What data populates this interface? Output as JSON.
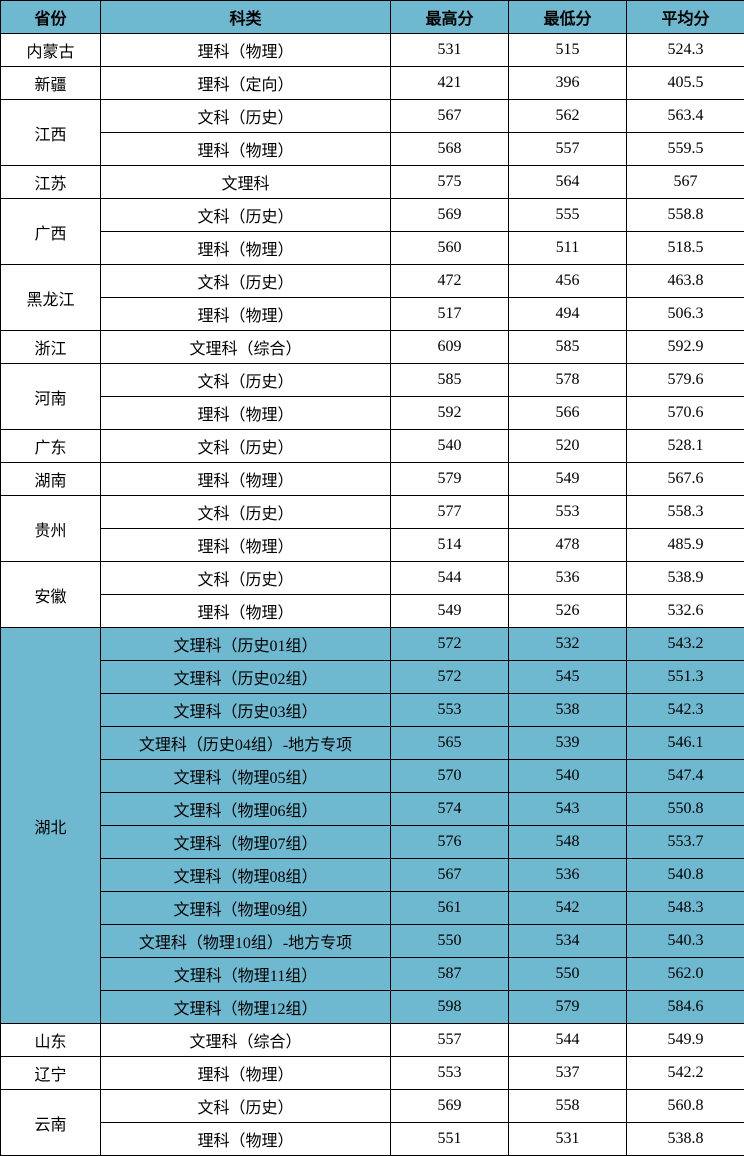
{
  "colors": {
    "header_bg": "#6eb8d0",
    "highlight_bg": "#6eb8d0",
    "normal_bg": "#ffffff",
    "border": "#000000"
  },
  "columns": [
    "省份",
    "科类",
    "最高分",
    "最低分",
    "平均分"
  ],
  "rows": [
    {
      "province": "内蒙古",
      "rowspan": 1,
      "subject": "理科（物理）",
      "max": "531",
      "min": "515",
      "avg": "524.3",
      "highlight": false
    },
    {
      "province": "新疆",
      "rowspan": 1,
      "subject": "理科（定向）",
      "max": "421",
      "min": "396",
      "avg": "405.5",
      "highlight": false
    },
    {
      "province": "江西",
      "rowspan": 2,
      "subject": "文科（历史）",
      "max": "567",
      "min": "562",
      "avg": "563.4",
      "highlight": false
    },
    {
      "province": null,
      "rowspan": 0,
      "subject": "理科（物理）",
      "max": "568",
      "min": "557",
      "avg": "559.5",
      "highlight": false
    },
    {
      "province": "江苏",
      "rowspan": 1,
      "subject": "文理科",
      "max": "575",
      "min": "564",
      "avg": "567",
      "highlight": false
    },
    {
      "province": "广西",
      "rowspan": 2,
      "subject": "文科（历史）",
      "max": "569",
      "min": "555",
      "avg": "558.8",
      "highlight": false
    },
    {
      "province": null,
      "rowspan": 0,
      "subject": "理科（物理）",
      "max": "560",
      "min": "511",
      "avg": "518.5",
      "highlight": false
    },
    {
      "province": "黑龙江",
      "rowspan": 2,
      "subject": "文科（历史）",
      "max": "472",
      "min": "456",
      "avg": "463.8",
      "highlight": false
    },
    {
      "province": null,
      "rowspan": 0,
      "subject": "理科（物理）",
      "max": "517",
      "min": "494",
      "avg": "506.3",
      "highlight": false
    },
    {
      "province": "浙江",
      "rowspan": 1,
      "subject": "文理科（综合）",
      "max": "609",
      "min": "585",
      "avg": "592.9",
      "highlight": false
    },
    {
      "province": "河南",
      "rowspan": 2,
      "subject": "文科（历史）",
      "max": "585",
      "min": "578",
      "avg": "579.6",
      "highlight": false
    },
    {
      "province": null,
      "rowspan": 0,
      "subject": "理科（物理）",
      "max": "592",
      "min": "566",
      "avg": "570.6",
      "highlight": false
    },
    {
      "province": "广东",
      "rowspan": 1,
      "subject": "文科（历史）",
      "max": "540",
      "min": "520",
      "avg": "528.1",
      "highlight": false
    },
    {
      "province": "湖南",
      "rowspan": 1,
      "subject": "理科（物理）",
      "max": "579",
      "min": "549",
      "avg": "567.6",
      "highlight": false
    },
    {
      "province": "贵州",
      "rowspan": 2,
      "subject": "文科（历史）",
      "max": "577",
      "min": "553",
      "avg": "558.3",
      "highlight": false
    },
    {
      "province": null,
      "rowspan": 0,
      "subject": "理科（物理）",
      "max": "514",
      "min": "478",
      "avg": "485.9",
      "highlight": false
    },
    {
      "province": "安徽",
      "rowspan": 2,
      "subject": "文科（历史）",
      "max": "544",
      "min": "536",
      "avg": "538.9",
      "highlight": false
    },
    {
      "province": null,
      "rowspan": 0,
      "subject": "理科（物理）",
      "max": "549",
      "min": "526",
      "avg": "532.6",
      "highlight": false
    },
    {
      "province": "湖北",
      "rowspan": 12,
      "subject": "文理科（历史01组）",
      "max": "572",
      "min": "532",
      "avg": "543.2",
      "highlight": true
    },
    {
      "province": null,
      "rowspan": 0,
      "subject": "文理科（历史02组）",
      "max": "572",
      "min": "545",
      "avg": "551.3",
      "highlight": true
    },
    {
      "province": null,
      "rowspan": 0,
      "subject": "文理科（历史03组）",
      "max": "553",
      "min": "538",
      "avg": "542.3",
      "highlight": true
    },
    {
      "province": null,
      "rowspan": 0,
      "subject": "文理科（历史04组）-地方专项",
      "max": "565",
      "min": "539",
      "avg": "546.1",
      "highlight": true
    },
    {
      "province": null,
      "rowspan": 0,
      "subject": "文理科（物理05组）",
      "max": "570",
      "min": "540",
      "avg": "547.4",
      "highlight": true
    },
    {
      "province": null,
      "rowspan": 0,
      "subject": "文理科（物理06组）",
      "max": "574",
      "min": "543",
      "avg": "550.8",
      "highlight": true
    },
    {
      "province": null,
      "rowspan": 0,
      "subject": "文理科（物理07组）",
      "max": "576",
      "min": "548",
      "avg": "553.7",
      "highlight": true
    },
    {
      "province": null,
      "rowspan": 0,
      "subject": "文理科（物理08组）",
      "max": "567",
      "min": "536",
      "avg": "540.8",
      "highlight": true
    },
    {
      "province": null,
      "rowspan": 0,
      "subject": "文理科（物理09组）",
      "max": "561",
      "min": "542",
      "avg": "548.3",
      "highlight": true
    },
    {
      "province": null,
      "rowspan": 0,
      "subject": "文理科（物理10组）-地方专项",
      "max": "550",
      "min": "534",
      "avg": "540.3",
      "highlight": true
    },
    {
      "province": null,
      "rowspan": 0,
      "subject": "文理科（物理11组）",
      "max": "587",
      "min": "550",
      "avg": "562.0",
      "highlight": true
    },
    {
      "province": null,
      "rowspan": 0,
      "subject": "文理科（物理12组）",
      "max": "598",
      "min": "579",
      "avg": "584.6",
      "highlight": true
    },
    {
      "province": "山东",
      "rowspan": 1,
      "subject": "文理科（综合）",
      "max": "557",
      "min": "544",
      "avg": "549.9",
      "highlight": false
    },
    {
      "province": "辽宁",
      "rowspan": 1,
      "subject": "理科（物理）",
      "max": "553",
      "min": "537",
      "avg": "542.2",
      "highlight": false
    },
    {
      "province": "云南",
      "rowspan": 2,
      "subject": "文科（历史）",
      "max": "569",
      "min": "558",
      "avg": "560.8",
      "highlight": false
    },
    {
      "province": null,
      "rowspan": 0,
      "subject": "理科（物理）",
      "max": "551",
      "min": "531",
      "avg": "538.8",
      "highlight": false
    }
  ]
}
